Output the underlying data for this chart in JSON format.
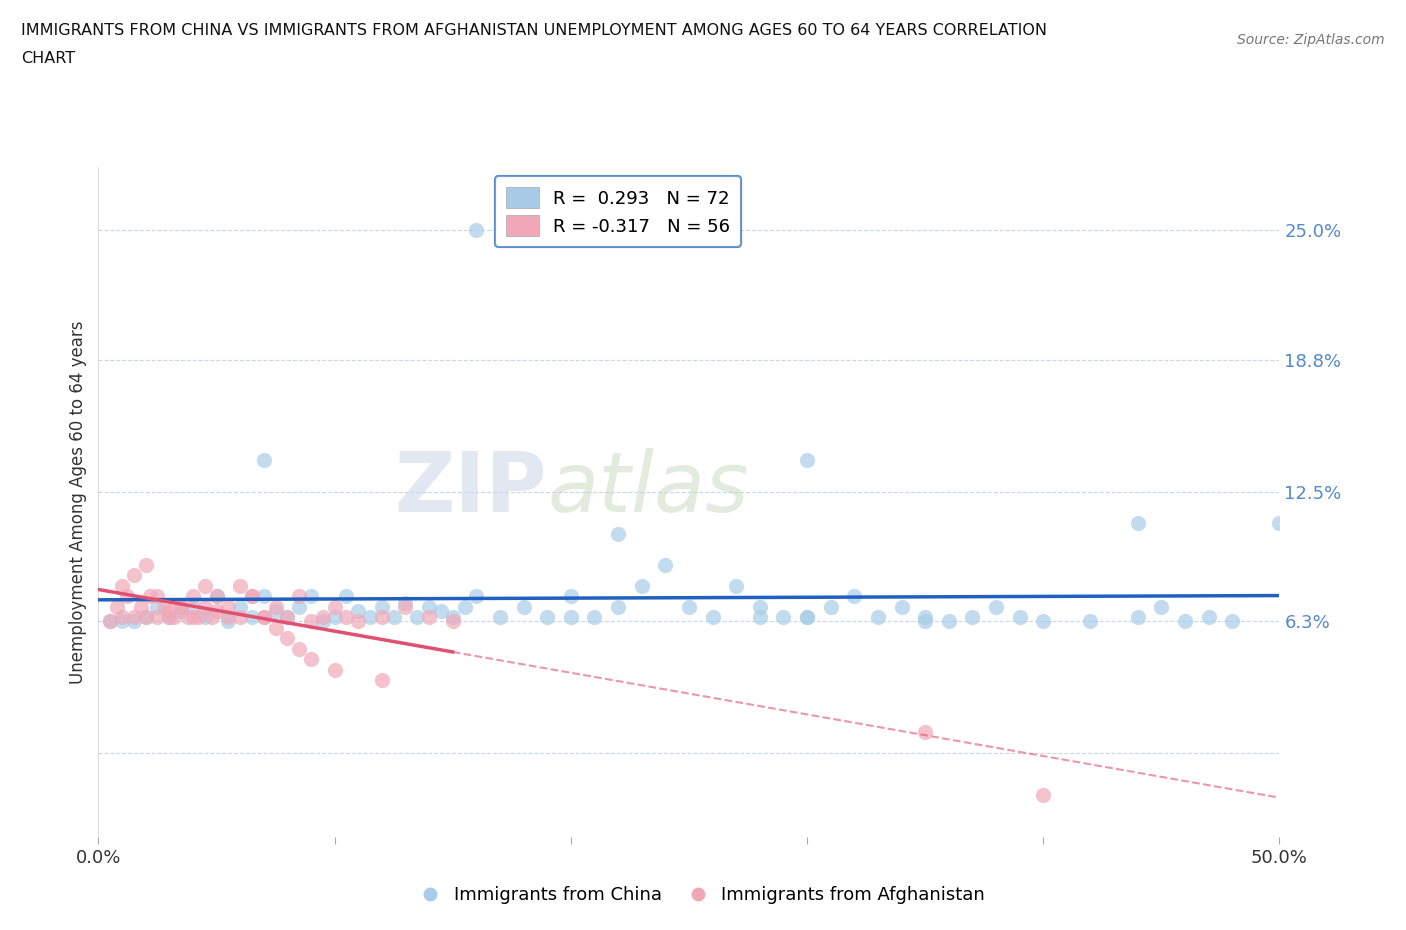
{
  "title_line1": "IMMIGRANTS FROM CHINA VS IMMIGRANTS FROM AFGHANISTAN UNEMPLOYMENT AMONG AGES 60 TO 64 YEARS CORRELATION",
  "title_line2": "CHART",
  "source": "Source: ZipAtlas.com",
  "ylabel": "Unemployment Among Ages 60 to 64 years",
  "xlim": [
    0.0,
    0.5
  ],
  "ylim": [
    -0.04,
    0.28
  ],
  "yticks": [
    0.0,
    0.063,
    0.125,
    0.188,
    0.25
  ],
  "ytick_labels": [
    "",
    "6.3%",
    "12.5%",
    "18.8%",
    "25.0%"
  ],
  "xticks": [
    0.0,
    0.1,
    0.2,
    0.3,
    0.4,
    0.5
  ],
  "xtick_labels": [
    "0.0%",
    "",
    "",
    "",
    "",
    "50.0%"
  ],
  "grid_color": "#c8d8e8",
  "background_color": "#ffffff",
  "china_color": "#a8cce8",
  "afghanistan_color": "#f0a8b8",
  "china_line_color": "#2060c0",
  "afghanistan_line_color": "#e05070",
  "china_r": 0.293,
  "china_n": 72,
  "afghanistan_r": -0.317,
  "afghanistan_n": 56,
  "watermark_zip": "ZIP",
  "watermark_atlas": "atlas",
  "legend_label_china": "R =  0.293   N = 72",
  "legend_label_afg": "R = -0.317   N = 56",
  "bottom_legend_china": "Immigrants from China",
  "bottom_legend_afg": "Immigrants from Afghanistan",
  "china_scatter_x": [
    0.16,
    0.07,
    0.005,
    0.01,
    0.015,
    0.02,
    0.025,
    0.03,
    0.035,
    0.04,
    0.045,
    0.05,
    0.055,
    0.06,
    0.065,
    0.07,
    0.075,
    0.08,
    0.085,
    0.09,
    0.095,
    0.1,
    0.105,
    0.11,
    0.115,
    0.12,
    0.125,
    0.13,
    0.135,
    0.14,
    0.145,
    0.15,
    0.155,
    0.16,
    0.17,
    0.18,
    0.19,
    0.2,
    0.21,
    0.22,
    0.23,
    0.24,
    0.25,
    0.26,
    0.27,
    0.28,
    0.29,
    0.3,
    0.31,
    0.32,
    0.33,
    0.34,
    0.35,
    0.36,
    0.37,
    0.38,
    0.39,
    0.4,
    0.42,
    0.44,
    0.45,
    0.46,
    0.47,
    0.48,
    0.5,
    0.22,
    0.28,
    0.3,
    0.35,
    0.44,
    0.3,
    0.2
  ],
  "china_scatter_y": [
    0.25,
    0.14,
    0.063,
    0.063,
    0.063,
    0.065,
    0.07,
    0.065,
    0.068,
    0.07,
    0.065,
    0.075,
    0.063,
    0.07,
    0.065,
    0.075,
    0.068,
    0.065,
    0.07,
    0.075,
    0.063,
    0.065,
    0.075,
    0.068,
    0.065,
    0.07,
    0.065,
    0.072,
    0.065,
    0.07,
    0.068,
    0.065,
    0.07,
    0.075,
    0.065,
    0.07,
    0.065,
    0.075,
    0.065,
    0.07,
    0.08,
    0.09,
    0.07,
    0.065,
    0.08,
    0.07,
    0.065,
    0.065,
    0.07,
    0.075,
    0.065,
    0.07,
    0.065,
    0.063,
    0.065,
    0.07,
    0.065,
    0.063,
    0.063,
    0.065,
    0.07,
    0.063,
    0.065,
    0.063,
    0.11,
    0.105,
    0.065,
    0.14,
    0.063,
    0.11,
    0.065,
    0.065
  ],
  "afghanistan_scatter_x": [
    0.005,
    0.008,
    0.01,
    0.012,
    0.015,
    0.018,
    0.02,
    0.022,
    0.025,
    0.028,
    0.03,
    0.032,
    0.035,
    0.038,
    0.04,
    0.042,
    0.045,
    0.048,
    0.05,
    0.055,
    0.06,
    0.065,
    0.07,
    0.075,
    0.08,
    0.085,
    0.09,
    0.095,
    0.1,
    0.105,
    0.11,
    0.12,
    0.13,
    0.14,
    0.15,
    0.01,
    0.015,
    0.02,
    0.025,
    0.03,
    0.035,
    0.04,
    0.045,
    0.05,
    0.055,
    0.06,
    0.065,
    0.07,
    0.075,
    0.08,
    0.085,
    0.09,
    0.1,
    0.12,
    0.35,
    0.4
  ],
  "afghanistan_scatter_y": [
    0.063,
    0.07,
    0.065,
    0.075,
    0.065,
    0.07,
    0.065,
    0.075,
    0.065,
    0.07,
    0.068,
    0.065,
    0.07,
    0.065,
    0.075,
    0.065,
    0.07,
    0.065,
    0.068,
    0.07,
    0.065,
    0.075,
    0.065,
    0.07,
    0.065,
    0.075,
    0.063,
    0.065,
    0.07,
    0.065,
    0.063,
    0.065,
    0.07,
    0.065,
    0.063,
    0.08,
    0.085,
    0.09,
    0.075,
    0.065,
    0.07,
    0.065,
    0.08,
    0.075,
    0.065,
    0.08,
    0.075,
    0.065,
    0.06,
    0.055,
    0.05,
    0.045,
    0.04,
    0.035,
    0.01,
    -0.02
  ]
}
